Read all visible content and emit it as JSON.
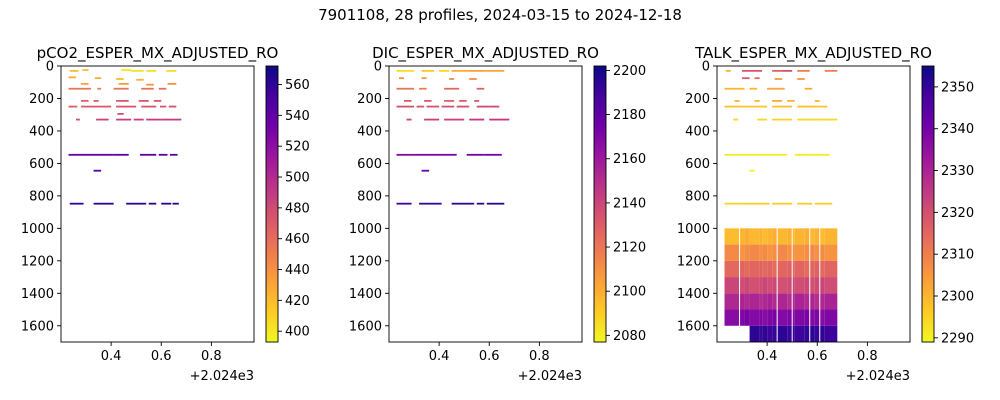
{
  "suptitle": "7901108, 28 profiles, 2024-03-15 to 2024-12-18",
  "chart_data": [
    {
      "type": "heatmap",
      "title": "pCO2_ESPER_MX_ADJUSTED_RO",
      "x_offset_label": "+2.024e3",
      "xlim": [
        0.2,
        0.97
      ],
      "xticks": [
        0.4,
        0.6,
        0.8
      ],
      "xtick_labels": [
        "0.4",
        "0.6",
        "0.8"
      ],
      "ylim": [
        1700,
        0
      ],
      "yticks": [
        0,
        200,
        400,
        600,
        800,
        1000,
        1200,
        1400,
        1600
      ],
      "ytick_labels": [
        "0",
        "200",
        "400",
        "600",
        "800",
        "1000",
        "1200",
        "1400",
        "1600"
      ],
      "colormap": "plasma_r",
      "clim": [
        393,
        572
      ],
      "cbar_ticks": [
        400,
        420,
        440,
        460,
        480,
        500,
        520,
        540,
        560
      ],
      "cbar_tick_labels": [
        "400",
        "420",
        "440",
        "460",
        "480",
        "500",
        "520",
        "540",
        "560"
      ],
      "segments": [
        {
          "x0": 0.235,
          "x1": 0.27,
          "depth": 30,
          "value": 420
        },
        {
          "x0": 0.285,
          "x1": 0.31,
          "depth": 25,
          "value": 418
        },
        {
          "x0": 0.44,
          "x1": 0.48,
          "depth": 25,
          "value": 400
        },
        {
          "x0": 0.48,
          "x1": 0.53,
          "depth": 30,
          "value": 402
        },
        {
          "x0": 0.54,
          "x1": 0.58,
          "depth": 30,
          "value": 404
        },
        {
          "x0": 0.62,
          "x1": 0.66,
          "depth": 30,
          "value": 406
        },
        {
          "x0": 0.23,
          "x1": 0.26,
          "depth": 70,
          "value": 430
        },
        {
          "x0": 0.335,
          "x1": 0.36,
          "depth": 75,
          "value": 428
        },
        {
          "x0": 0.42,
          "x1": 0.45,
          "depth": 80,
          "value": 420
        },
        {
          "x0": 0.5,
          "x1": 0.53,
          "depth": 85,
          "value": 425
        },
        {
          "x0": 0.28,
          "x1": 0.31,
          "depth": 110,
          "value": 432
        },
        {
          "x0": 0.43,
          "x1": 0.47,
          "depth": 110,
          "value": 435
        },
        {
          "x0": 0.54,
          "x1": 0.57,
          "depth": 115,
          "value": 438
        },
        {
          "x0": 0.625,
          "x1": 0.66,
          "depth": 110,
          "value": 440
        },
        {
          "x0": 0.23,
          "x1": 0.32,
          "depth": 140,
          "value": 455
        },
        {
          "x0": 0.345,
          "x1": 0.36,
          "depth": 140,
          "value": 452
        },
        {
          "x0": 0.41,
          "x1": 0.47,
          "depth": 140,
          "value": 455
        },
        {
          "x0": 0.52,
          "x1": 0.57,
          "depth": 140,
          "value": 458
        },
        {
          "x0": 0.59,
          "x1": 0.62,
          "depth": 140,
          "value": 460
        },
        {
          "x0": 0.28,
          "x1": 0.31,
          "depth": 215,
          "value": 468
        },
        {
          "x0": 0.33,
          "x1": 0.35,
          "depth": 215,
          "value": 470
        },
        {
          "x0": 0.42,
          "x1": 0.47,
          "depth": 215,
          "value": 470
        },
        {
          "x0": 0.51,
          "x1": 0.55,
          "depth": 215,
          "value": 472
        },
        {
          "x0": 0.57,
          "x1": 0.6,
          "depth": 215,
          "value": 472
        },
        {
          "x0": 0.23,
          "x1": 0.265,
          "depth": 250,
          "value": 470
        },
        {
          "x0": 0.28,
          "x1": 0.4,
          "depth": 250,
          "value": 472
        },
        {
          "x0": 0.42,
          "x1": 0.5,
          "depth": 250,
          "value": 473
        },
        {
          "x0": 0.52,
          "x1": 0.58,
          "depth": 250,
          "value": 474
        },
        {
          "x0": 0.595,
          "x1": 0.62,
          "depth": 250,
          "value": 474
        },
        {
          "x0": 0.63,
          "x1": 0.66,
          "depth": 250,
          "value": 476
        },
        {
          "x0": 0.425,
          "x1": 0.45,
          "depth": 295,
          "value": 478
        },
        {
          "x0": 0.26,
          "x1": 0.275,
          "depth": 330,
          "value": 482
        },
        {
          "x0": 0.34,
          "x1": 0.39,
          "depth": 330,
          "value": 485
        },
        {
          "x0": 0.42,
          "x1": 0.48,
          "depth": 330,
          "value": 486
        },
        {
          "x0": 0.49,
          "x1": 0.53,
          "depth": 330,
          "value": 486
        },
        {
          "x0": 0.54,
          "x1": 0.6,
          "depth": 330,
          "value": 488
        },
        {
          "x0": 0.6,
          "x1": 0.68,
          "depth": 330,
          "value": 488
        },
        {
          "x0": 0.23,
          "x1": 0.41,
          "depth": 547,
          "value": 540
        },
        {
          "x0": 0.41,
          "x1": 0.47,
          "depth": 547,
          "value": 542
        },
        {
          "x0": 0.515,
          "x1": 0.58,
          "depth": 547,
          "value": 542
        },
        {
          "x0": 0.59,
          "x1": 0.625,
          "depth": 547,
          "value": 544
        },
        {
          "x0": 0.635,
          "x1": 0.665,
          "depth": 547,
          "value": 544
        },
        {
          "x0": 0.33,
          "x1": 0.36,
          "depth": 645,
          "value": 545
        },
        {
          "x0": 0.235,
          "x1": 0.29,
          "depth": 848,
          "value": 560
        },
        {
          "x0": 0.33,
          "x1": 0.41,
          "depth": 848,
          "value": 562
        },
        {
          "x0": 0.46,
          "x1": 0.54,
          "depth": 848,
          "value": 562
        },
        {
          "x0": 0.55,
          "x1": 0.58,
          "depth": 848,
          "value": 563
        },
        {
          "x0": 0.6,
          "x1": 0.64,
          "depth": 848,
          "value": 564
        },
        {
          "x0": 0.645,
          "x1": 0.67,
          "depth": 848,
          "value": 564
        }
      ]
    },
    {
      "type": "heatmap",
      "title": "DIC_ESPER_MX_ADJUSTED_RO",
      "x_offset_label": "+2.024e3",
      "xlim": [
        0.2,
        0.97
      ],
      "xticks": [
        0.4,
        0.6,
        0.8
      ],
      "xtick_labels": [
        "0.4",
        "0.6",
        "0.8"
      ],
      "ylim": [
        1700,
        0
      ],
      "yticks": [
        0,
        200,
        400,
        600,
        800,
        1000,
        1200,
        1400,
        1600
      ],
      "ytick_labels": [
        "0",
        "200",
        "400",
        "600",
        "800",
        "1000",
        "1200",
        "1400",
        "1600"
      ],
      "colormap": "plasma_r",
      "clim": [
        2077,
        2202
      ],
      "cbar_ticks": [
        2080,
        2100,
        2120,
        2140,
        2160,
        2180,
        2200
      ],
      "cbar_tick_labels": [
        "2080",
        "2100",
        "2120",
        "2140",
        "2160",
        "2180",
        "2200"
      ],
      "segments": [
        {
          "x0": 0.23,
          "x1": 0.3,
          "depth": 30,
          "value": 2085
        },
        {
          "x0": 0.33,
          "x1": 0.38,
          "depth": 30,
          "value": 2092
        },
        {
          "x0": 0.4,
          "x1": 0.44,
          "depth": 30,
          "value": 2088
        },
        {
          "x0": 0.45,
          "x1": 0.52,
          "depth": 30,
          "value": 2100
        },
        {
          "x0": 0.52,
          "x1": 0.58,
          "depth": 30,
          "value": 2105
        },
        {
          "x0": 0.58,
          "x1": 0.66,
          "depth": 30,
          "value": 2102
        },
        {
          "x0": 0.24,
          "x1": 0.26,
          "depth": 75,
          "value": 2110
        },
        {
          "x0": 0.33,
          "x1": 0.35,
          "depth": 75,
          "value": 2108
        },
        {
          "x0": 0.44,
          "x1": 0.46,
          "depth": 80,
          "value": 2112
        },
        {
          "x0": 0.52,
          "x1": 0.55,
          "depth": 80,
          "value": 2112
        },
        {
          "x0": 0.23,
          "x1": 0.3,
          "depth": 140,
          "value": 2120
        },
        {
          "x0": 0.32,
          "x1": 0.35,
          "depth": 140,
          "value": 2118
        },
        {
          "x0": 0.42,
          "x1": 0.48,
          "depth": 140,
          "value": 2125
        },
        {
          "x0": 0.55,
          "x1": 0.58,
          "depth": 140,
          "value": 2128
        },
        {
          "x0": 0.26,
          "x1": 0.29,
          "depth": 215,
          "value": 2130
        },
        {
          "x0": 0.34,
          "x1": 0.37,
          "depth": 215,
          "value": 2130
        },
        {
          "x0": 0.42,
          "x1": 0.46,
          "depth": 215,
          "value": 2128
        },
        {
          "x0": 0.48,
          "x1": 0.51,
          "depth": 215,
          "value": 2130
        },
        {
          "x0": 0.54,
          "x1": 0.56,
          "depth": 215,
          "value": 2132
        },
        {
          "x0": 0.23,
          "x1": 0.3,
          "depth": 250,
          "value": 2135
        },
        {
          "x0": 0.31,
          "x1": 0.34,
          "depth": 250,
          "value": 2134
        },
        {
          "x0": 0.35,
          "x1": 0.4,
          "depth": 250,
          "value": 2135
        },
        {
          "x0": 0.41,
          "x1": 0.46,
          "depth": 250,
          "value": 2136
        },
        {
          "x0": 0.47,
          "x1": 0.52,
          "depth": 250,
          "value": 2136
        },
        {
          "x0": 0.55,
          "x1": 0.6,
          "depth": 250,
          "value": 2138
        },
        {
          "x0": 0.6,
          "x1": 0.64,
          "depth": 250,
          "value": 2138
        },
        {
          "x0": 0.27,
          "x1": 0.29,
          "depth": 330,
          "value": 2140
        },
        {
          "x0": 0.34,
          "x1": 0.4,
          "depth": 330,
          "value": 2142
        },
        {
          "x0": 0.42,
          "x1": 0.5,
          "depth": 330,
          "value": 2142
        },
        {
          "x0": 0.52,
          "x1": 0.58,
          "depth": 330,
          "value": 2145
        },
        {
          "x0": 0.6,
          "x1": 0.68,
          "depth": 330,
          "value": 2145
        },
        {
          "x0": 0.23,
          "x1": 0.3,
          "depth": 547,
          "value": 2170
        },
        {
          "x0": 0.3,
          "x1": 0.47,
          "depth": 547,
          "value": 2172
        },
        {
          "x0": 0.51,
          "x1": 0.58,
          "depth": 547,
          "value": 2175
        },
        {
          "x0": 0.58,
          "x1": 0.65,
          "depth": 547,
          "value": 2175
        },
        {
          "x0": 0.33,
          "x1": 0.36,
          "depth": 645,
          "value": 2175
        },
        {
          "x0": 0.23,
          "x1": 0.29,
          "depth": 848,
          "value": 2190
        },
        {
          "x0": 0.32,
          "x1": 0.41,
          "depth": 848,
          "value": 2192
        },
        {
          "x0": 0.45,
          "x1": 0.54,
          "depth": 848,
          "value": 2194
        },
        {
          "x0": 0.55,
          "x1": 0.58,
          "depth": 848,
          "value": 2195
        },
        {
          "x0": 0.59,
          "x1": 0.66,
          "depth": 848,
          "value": 2195
        }
      ]
    },
    {
      "type": "heatmap",
      "title": "TALK_ESPER_MX_ADJUSTED_RO",
      "x_offset_label": "+2.024e3",
      "xlim": [
        0.2,
        0.97
      ],
      "xticks": [
        0.4,
        0.6,
        0.8
      ],
      "xtick_labels": [
        "0.4",
        "0.6",
        "0.8"
      ],
      "ylim": [
        1700,
        0
      ],
      "yticks": [
        0,
        200,
        400,
        600,
        800,
        1000,
        1200,
        1400,
        1600
      ],
      "ytick_labels": [
        "0",
        "200",
        "400",
        "600",
        "800",
        "1000",
        "1200",
        "1400",
        "1600"
      ],
      "colormap": "plasma_r",
      "clim": [
        2289,
        2355
      ],
      "cbar_ticks": [
        2290,
        2300,
        2310,
        2320,
        2330,
        2340,
        2350
      ],
      "cbar_tick_labels": [
        "2290",
        "2300",
        "2310",
        "2320",
        "2330",
        "2340",
        "2350"
      ],
      "segments": [
        {
          "x0": 0.235,
          "x1": 0.255,
          "depth": 30,
          "value": 2300
        },
        {
          "x0": 0.3,
          "x1": 0.38,
          "depth": 30,
          "value": 2318
        },
        {
          "x0": 0.42,
          "x1": 0.46,
          "depth": 30,
          "value": 2316
        },
        {
          "x0": 0.46,
          "x1": 0.5,
          "depth": 30,
          "value": 2320
        },
        {
          "x0": 0.52,
          "x1": 0.57,
          "depth": 30,
          "value": 2310
        },
        {
          "x0": 0.63,
          "x1": 0.68,
          "depth": 30,
          "value": 2310
        },
        {
          "x0": 0.3,
          "x1": 0.33,
          "depth": 75,
          "value": 2318
        },
        {
          "x0": 0.35,
          "x1": 0.37,
          "depth": 75,
          "value": 2315
        },
        {
          "x0": 0.43,
          "x1": 0.46,
          "depth": 80,
          "value": 2305
        },
        {
          "x0": 0.52,
          "x1": 0.55,
          "depth": 80,
          "value": 2305
        },
        {
          "x0": 0.23,
          "x1": 0.31,
          "depth": 140,
          "value": 2300
        },
        {
          "x0": 0.33,
          "x1": 0.36,
          "depth": 140,
          "value": 2300
        },
        {
          "x0": 0.4,
          "x1": 0.47,
          "depth": 140,
          "value": 2303
        },
        {
          "x0": 0.55,
          "x1": 0.58,
          "depth": 140,
          "value": 2302
        },
        {
          "x0": 0.27,
          "x1": 0.29,
          "depth": 215,
          "value": 2300
        },
        {
          "x0": 0.35,
          "x1": 0.37,
          "depth": 215,
          "value": 2300
        },
        {
          "x0": 0.42,
          "x1": 0.46,
          "depth": 215,
          "value": 2302
        },
        {
          "x0": 0.48,
          "x1": 0.51,
          "depth": 215,
          "value": 2300
        },
        {
          "x0": 0.59,
          "x1": 0.61,
          "depth": 215,
          "value": 2300
        },
        {
          "x0": 0.23,
          "x1": 0.3,
          "depth": 250,
          "value": 2298
        },
        {
          "x0": 0.3,
          "x1": 0.4,
          "depth": 250,
          "value": 2297
        },
        {
          "x0": 0.42,
          "x1": 0.5,
          "depth": 250,
          "value": 2298
        },
        {
          "x0": 0.52,
          "x1": 0.6,
          "depth": 250,
          "value": 2298
        },
        {
          "x0": 0.6,
          "x1": 0.64,
          "depth": 250,
          "value": 2297
        },
        {
          "x0": 0.265,
          "x1": 0.285,
          "depth": 330,
          "value": 2294
        },
        {
          "x0": 0.36,
          "x1": 0.4,
          "depth": 330,
          "value": 2294
        },
        {
          "x0": 0.42,
          "x1": 0.5,
          "depth": 330,
          "value": 2295
        },
        {
          "x0": 0.52,
          "x1": 0.6,
          "depth": 330,
          "value": 2294
        },
        {
          "x0": 0.6,
          "x1": 0.68,
          "depth": 330,
          "value": 2294
        },
        {
          "x0": 0.23,
          "x1": 0.48,
          "depth": 547,
          "value": 2291
        },
        {
          "x0": 0.51,
          "x1": 0.58,
          "depth": 547,
          "value": 2291
        },
        {
          "x0": 0.58,
          "x1": 0.65,
          "depth": 547,
          "value": 2291
        },
        {
          "x0": 0.33,
          "x1": 0.35,
          "depth": 645,
          "value": 2291
        },
        {
          "x0": 0.23,
          "x1": 0.3,
          "depth": 848,
          "value": 2295
        },
        {
          "x0": 0.3,
          "x1": 0.41,
          "depth": 848,
          "value": 2296
        },
        {
          "x0": 0.42,
          "x1": 0.5,
          "depth": 848,
          "value": 2296
        },
        {
          "x0": 0.52,
          "x1": 0.58,
          "depth": 848,
          "value": 2296
        },
        {
          "x0": 0.59,
          "x1": 0.66,
          "depth": 848,
          "value": 2296
        }
      ],
      "grid_block": {
        "columns": [
          0.23,
          0.29,
          0.31,
          0.33,
          0.37,
          0.38,
          0.4,
          0.42,
          0.44,
          0.48,
          0.5,
          0.51,
          0.55,
          0.57,
          0.59,
          0.61,
          0.63,
          0.68
        ],
        "column_gaps": [
          0.29,
          0.44,
          0.5,
          0.57,
          0.61
        ],
        "depth_edges": [
          1000,
          1100,
          1200,
          1300,
          1400,
          1500,
          1600,
          1700
        ],
        "row_values": [
          2300,
          2307,
          2315,
          2321,
          2329,
          2338,
          2350
        ],
        "bottom_row_start": 0.33
      }
    }
  ]
}
